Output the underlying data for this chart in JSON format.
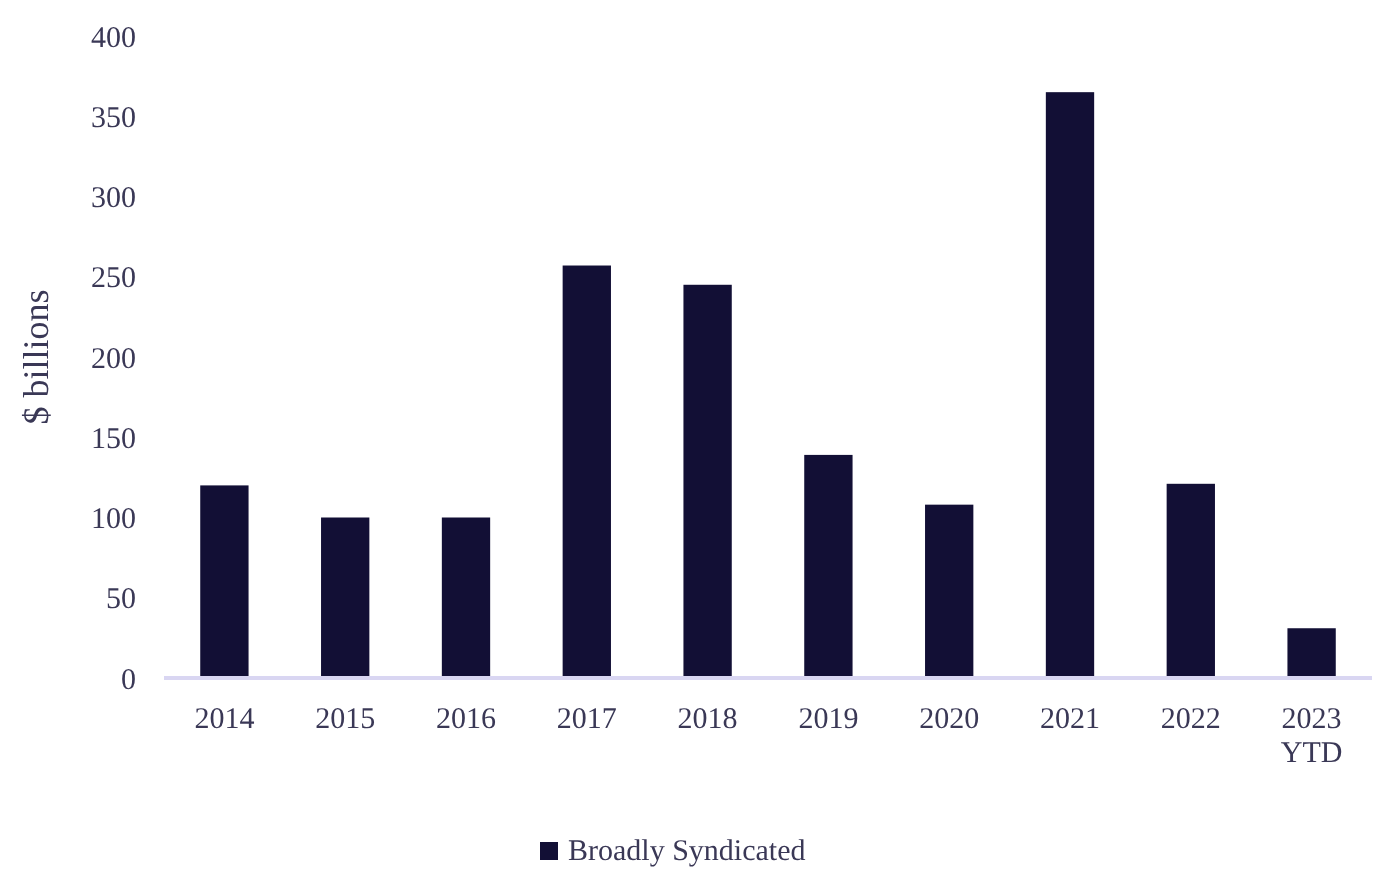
{
  "chart_data": {
    "type": "bar",
    "ylabel": "$ billions",
    "categories": [
      "2014",
      "2015",
      "2016",
      "2017",
      "2018",
      "2019",
      "2020",
      "2021",
      "2022",
      "2023\nYTD"
    ],
    "series": [
      {
        "name": "Broadly Syndicated",
        "color": "#120f35",
        "values": [
          120,
          100,
          100,
          257,
          245,
          139,
          108,
          365,
          121,
          31
        ]
      }
    ],
    "ylim": [
      0,
      400
    ],
    "yticks": [
      0,
      50,
      100,
      150,
      200,
      250,
      300,
      350,
      400
    ],
    "grid": false,
    "legend": "bottom"
  }
}
